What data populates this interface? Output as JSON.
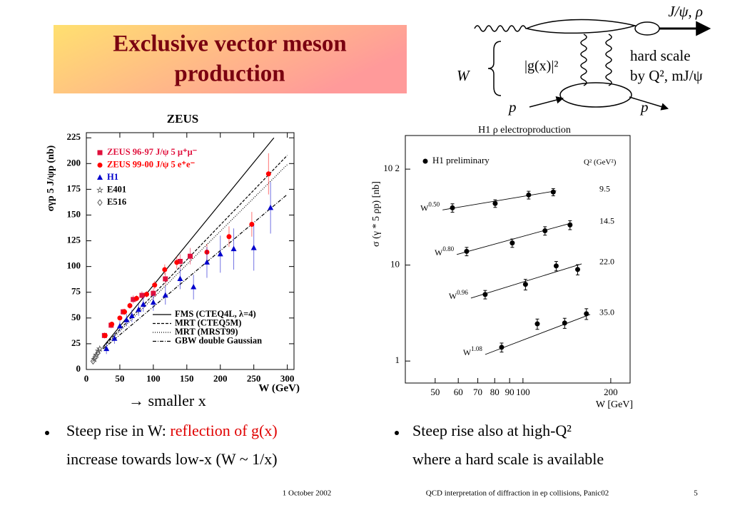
{
  "title": [
    "Exclusive vector meson",
    "production"
  ],
  "diagram": {
    "meson": "J/ψ, ρ",
    "hard_scale": [
      "hard scale",
      "by Q², mJ/ψ"
    ],
    "W": "W",
    "gluon": "|g(x)|²",
    "p_in": "p",
    "p_out": "p"
  },
  "chart_data": [
    {
      "type": "scatter",
      "title": "ZEUS",
      "xlabel": "W (GeV)",
      "ylabel": "σγp 5 J/ψp (nb)",
      "xlim": [
        0,
        310
      ],
      "ylim": [
        0,
        230
      ],
      "xticks": [
        0,
        50,
        100,
        150,
        200,
        250,
        300
      ],
      "yticks": [
        0,
        25,
        50,
        75,
        100,
        125,
        150,
        175,
        200,
        225
      ],
      "series": [
        {
          "name": "ZEUS 96-97 J/ψ 5 μ⁺μ⁻",
          "color": "#e0103c",
          "marker": "square",
          "x": [
            27,
            37,
            55,
            70,
            83,
            100,
            118,
            140,
            155
          ],
          "y": [
            33,
            43,
            56,
            68,
            72,
            74,
            88,
            105,
            110
          ],
          "errors": [
            3,
            3,
            3,
            4,
            4,
            5,
            6,
            7,
            8
          ]
        },
        {
          "name": "ZEUS 99-00 J/ψ 5 e⁺e⁻",
          "color": "#ff0000",
          "marker": "circle",
          "x": [
            28,
            38,
            50,
            57,
            65,
            75,
            90,
            102,
            117,
            135,
            180,
            213,
            247,
            272
          ],
          "y": [
            33,
            44,
            50,
            56,
            62,
            69,
            73,
            82,
            97,
            104,
            114,
            129,
            141,
            190
          ],
          "errors": [
            2,
            2,
            2,
            3,
            3,
            3,
            3,
            4,
            5,
            6,
            8,
            10,
            12,
            20
          ]
        },
        {
          "name": "H1",
          "color": "#0000cc",
          "marker": "triangle",
          "x": [
            30,
            42,
            50,
            60,
            68,
            78,
            85,
            100,
            118,
            140,
            160,
            180,
            200,
            220,
            250,
            275
          ],
          "y": [
            20,
            30,
            42,
            48,
            52,
            58,
            63,
            65,
            72,
            88,
            80,
            104,
            112,
            117,
            118,
            157
          ],
          "errors": [
            5,
            5,
            5,
            6,
            6,
            6,
            7,
            8,
            9,
            10,
            12,
            15,
            18,
            20,
            22,
            25
          ]
        },
        {
          "name": "E401",
          "color": "#555555",
          "marker": "star",
          "x": [
            12,
            15,
            18,
            20
          ],
          "y": [
            10,
            14,
            18,
            20
          ]
        },
        {
          "name": "E516",
          "color": "#555555",
          "marker": "diamond",
          "x": [
            10,
            13,
            17
          ],
          "y": [
            8,
            12,
            16
          ]
        }
      ],
      "curves": [
        {
          "name": "FMS (CTEQ4L, λ=4)",
          "dash": "none",
          "x": [
            25,
            280
          ],
          "y": [
            22,
            225
          ]
        },
        {
          "name": "MRT (CTEQ5M)",
          "dash": "4,2",
          "x": [
            25,
            300
          ],
          "y": [
            22,
            208
          ]
        },
        {
          "name": "MRT (MRST99)",
          "dash": "1,2",
          "x": [
            25,
            300
          ],
          "y": [
            21,
            199
          ]
        },
        {
          "name": "GBW double Gaussian",
          "dash": "5,2,1,2",
          "x": [
            25,
            300
          ],
          "y": [
            20,
            170
          ]
        }
      ]
    },
    {
      "type": "scatter",
      "title": "H1 ρ  electroproduction",
      "xlabel": "W  [GeV]",
      "ylabel": "σ (γ * 5 ρp)  [nb]",
      "xlog": true,
      "ylog": true,
      "xlim": [
        39.5,
        233
      ],
      "ylim": [
        0.59,
        224
      ],
      "xticks": [
        50,
        60,
        70,
        80,
        90,
        100,
        200
      ],
      "yticks": [
        1,
        10,
        {
          "value": 100,
          "label": "10 2"
        }
      ],
      "legend": "H1 preliminary",
      "q2_label": "Q² (GeV²)",
      "series": [
        {
          "name": "9.5",
          "color": "#000000",
          "marker": "circle",
          "x": [
            57.3,
            80.3,
            104.6,
            127
          ],
          "y": [
            39.5,
            43.9,
            53.8,
            57.7
          ],
          "errors": [
            4,
            4,
            5,
            5
          ],
          "fit": {
            "label": {
              "base": "W",
              "power": "0.50"
            },
            "x": [
              53,
              130
            ],
            "y": [
              37.6,
              59.4
            ]
          }
        },
        {
          "name": "14.5",
          "color": "#000000",
          "marker": "circle",
          "x": [
            64.1,
            91.9,
            119,
            145
          ],
          "y": [
            13.9,
            17.0,
            22.8,
            26.2
          ],
          "errors": [
            1.4,
            1.7,
            2.3,
            2.8
          ],
          "fit": {
            "label": {
              "base": "W",
              "power": "0.80"
            },
            "x": [
              59.3,
              147
            ],
            "y": [
              12.9,
              27.5
            ]
          }
        },
        {
          "name": "22.0",
          "color": "#000000",
          "marker": "circle",
          "x": [
            74.2,
            102,
            130,
            154
          ],
          "y": [
            4.94,
            6.3,
            9.8,
            9.0
          ],
          "errors": [
            0.5,
            0.8,
            1.1,
            1.1
          ],
          "fit": {
            "label": {
              "base": "W",
              "power": "0.96"
            },
            "x": [
              66.3,
              159
            ],
            "y": [
              4.53,
              10.3
            ]
          }
        },
        {
          "name": "35.0",
          "color": "#000000",
          "marker": "circle",
          "x": [
            84.5,
            112,
            139,
            165
          ],
          "y": [
            1.39,
            2.44,
            2.49,
            3.11
          ],
          "errors": [
            0.15,
            0.3,
            0.3,
            0.4
          ],
          "fit": {
            "label": {
              "base": "W",
              "power": "1.08"
            },
            "x": [
              74.2,
              170
            ],
            "y": [
              1.17,
              3.06
            ]
          }
        }
      ]
    }
  ],
  "caption": "→ smaller x",
  "bullets": [
    {
      "line1": "Steep rise in W: ",
      "highlight": "reflection of g(x)",
      "line2": "increase towards low-x (W ~ 1/x)"
    },
    {
      "line1": "Steep rise also at high-Q²",
      "line2": "where a hard scale is available"
    }
  ],
  "footer": {
    "date": "1 October 2002",
    "talk": "QCD interpretation of diffraction in ep collisions, Panic02",
    "page": 5
  }
}
